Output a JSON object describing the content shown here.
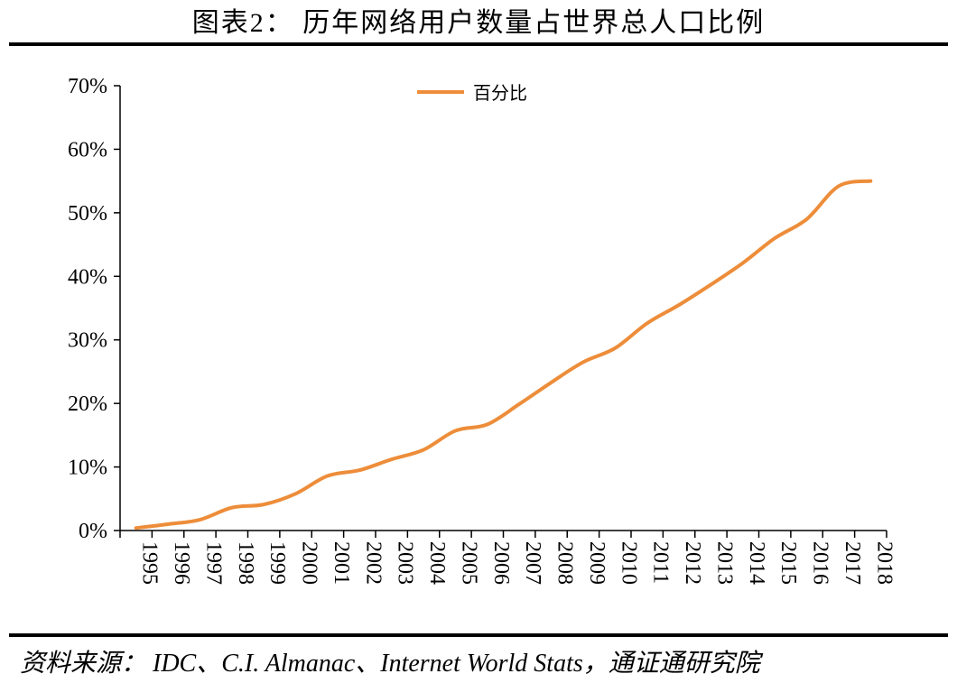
{
  "title": "图表2：  历年网络用户数量占世界总人口比例",
  "source": "资料来源：  IDC、C.I. Almanac、Internet World Stats，通证通研究院",
  "chart_data": {
    "type": "line",
    "x": [
      "1995",
      "1996",
      "1997",
      "1998",
      "1999",
      "2000",
      "2001",
      "2002",
      "2003",
      "2004",
      "2005",
      "2006",
      "2007",
      "2008",
      "2009",
      "2010",
      "2011",
      "2012",
      "2013",
      "2014",
      "2015",
      "2016",
      "2017",
      "2018"
    ],
    "y_tick_labels": [
      "0%",
      "10%",
      "20%",
      "30%",
      "40%",
      "50%",
      "60%",
      "70%"
    ],
    "ylim": [
      0,
      70
    ],
    "grid": false,
    "legend_position": "top-center",
    "series": [
      {
        "name": "百分比",
        "color": "#ED8D3A",
        "values": [
          0.4,
          1.0,
          1.7,
          3.6,
          4.1,
          5.8,
          8.6,
          9.5,
          11.2,
          12.7,
          15.7,
          16.7,
          19.9,
          23.3,
          26.5,
          28.7,
          32.6,
          35.5,
          38.7,
          42.1,
          46.0,
          49.0,
          54.2,
          55.0
        ]
      }
    ]
  }
}
